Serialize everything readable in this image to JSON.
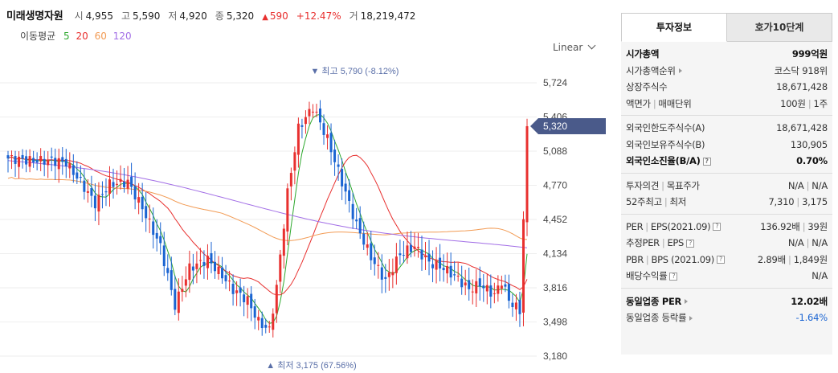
{
  "header": {
    "name": "미래생명자원",
    "open_label": "시",
    "open": "4,955",
    "high_label": "고",
    "high": "5,590",
    "low_label": "저",
    "low": "4,920",
    "close_label": "종",
    "close": "5,320",
    "change": "590",
    "change_pct": "+12.47%",
    "volume_label": "거",
    "volume": "18,219,472"
  },
  "ma_legend": {
    "title": "이동평균",
    "items": [
      {
        "label": "5",
        "color": "#2ea82e"
      },
      {
        "label": "20",
        "color": "#e8302f"
      },
      {
        "label": "60",
        "color": "#f29b54"
      },
      {
        "label": "120",
        "color": "#a26ee6"
      }
    ]
  },
  "scale_label": "Linear",
  "chart_data": {
    "type": "candlestick",
    "y_ticks": [
      "5,724",
      "5,406",
      "5,088",
      "4,770",
      "4,452",
      "4,134",
      "3,816",
      "3,498",
      "3,180"
    ],
    "ylim": [
      3180,
      5724
    ],
    "current_price": "5,320",
    "max_label": "최고 5,790 (-8.12%)",
    "min_label": "최저 3,175 (67.56%)",
    "colors": {
      "up": "#e8302f",
      "down": "#1a64d2",
      "current_tag": "#4a5a8a",
      "label": "#5a6fa8"
    }
  },
  "panel": {
    "tabs": [
      "투자정보",
      "호가10단계"
    ],
    "market_cap": {
      "label": "시가총액",
      "value": "999억원"
    },
    "market_rank": {
      "label": "시가총액순위",
      "value": "코스닥 918위"
    },
    "shares": {
      "label": "상장주식수",
      "value": "18,671,428"
    },
    "par": {
      "label1": "액면가",
      "label2": "매매단위",
      "value1": "100원",
      "value2": "1주"
    },
    "foreign_limit": {
      "label": "외국인한도주식수(A)",
      "value": "18,671,428"
    },
    "foreign_hold": {
      "label": "외국인보유주식수(B)",
      "value": "130,905"
    },
    "foreign_ratio": {
      "label": "외국인소진율(B/A)",
      "value": "0.70%"
    },
    "opinion": {
      "label1": "투자의견",
      "label2": "목표주가",
      "value1": "N/A",
      "value2": "N/A"
    },
    "week52": {
      "label1": "52주최고",
      "label2": "최저",
      "value1": "7,310",
      "value2": "3,175"
    },
    "per_eps": {
      "label1": "PER",
      "label2": "EPS(2021.09)",
      "value1": "136.92배",
      "value2": "39원"
    },
    "est_per": {
      "label1": "추정PER",
      "label2": "EPS",
      "value1": "N/A",
      "value2": "N/A"
    },
    "pbr_bps": {
      "label1": "PBR",
      "label2": "BPS (2021.09)",
      "value1": "2.89배",
      "value2": "1,849원"
    },
    "dividend": {
      "label": "배당수익률",
      "value": "N/A"
    },
    "industry_per": {
      "label": "동일업종 PER",
      "value": "12.02배"
    },
    "industry_rate": {
      "label": "동일업종 등락률",
      "value": "-1.64%"
    }
  }
}
